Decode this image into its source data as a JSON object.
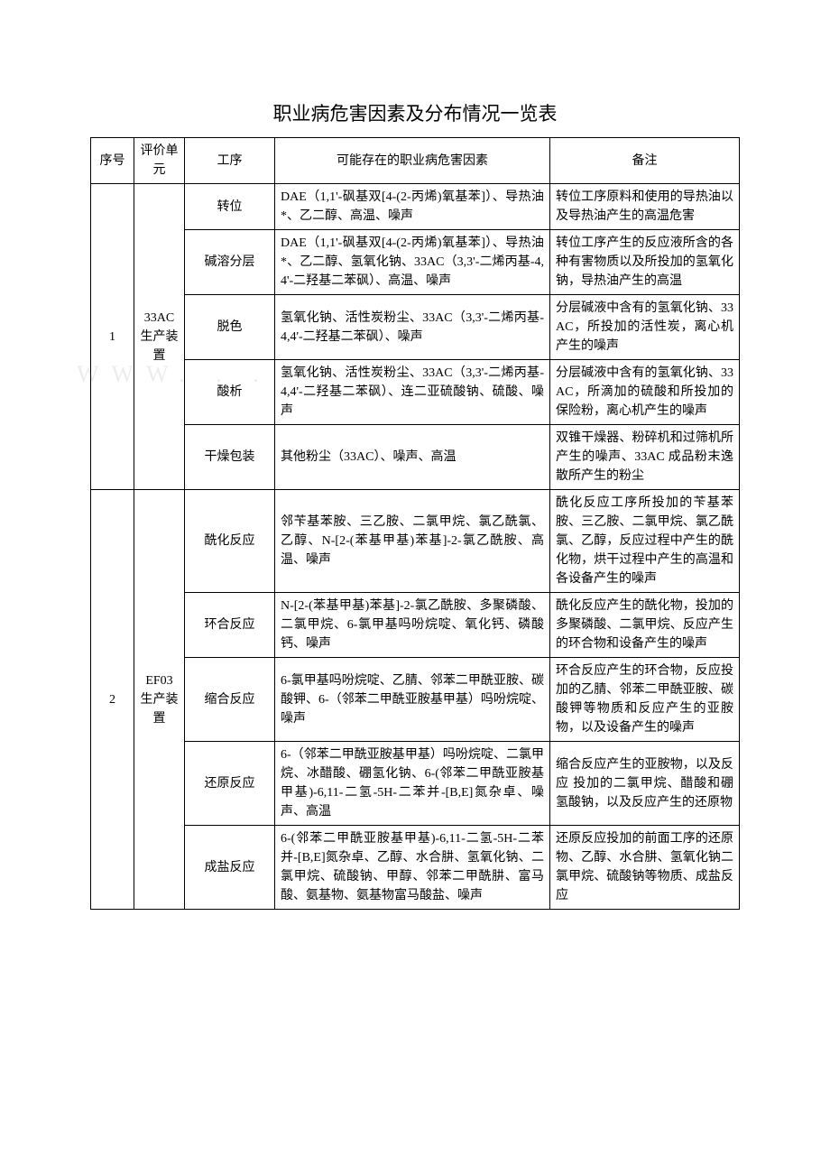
{
  "title": "职业病危害因素及分布情况一览表",
  "headers": {
    "seq": "序号",
    "unit": "评价单元",
    "proc": "工序",
    "hazard": "可能存在的职业病危害因素",
    "note": "备注"
  },
  "groups": [
    {
      "seq": "1",
      "unit": "33AC生产装置",
      "rows": [
        {
          "proc": "转位",
          "hazard": "DAE（1,1'-砜基双[4-(2-丙烯)氧基苯]）、导热油*、乙二醇、高温、噪声",
          "note": "转位工序原料和使用的导热油以及导热油产生的高温危害"
        },
        {
          "proc": "碱溶分层",
          "hazard": "DAE（1,1'-砜基双[4-(2-丙烯)氧基苯]）、导热油*、乙二醇、氢氧化钠、33AC（3,3'-二烯丙基-4,4'-二羟基二苯砜）、高温、噪声",
          "note": "转位工序产生的反应液所含的各种有害物质以及所投加的氢氧化钠，导热油产生的高温"
        },
        {
          "proc": "脱色",
          "hazard": "氢氧化钠、活性炭粉尘、33AC（3,3'-二烯丙基-4,4'-二羟基二苯砜）、噪声",
          "note": "分层碱液中含有的氢氧化钠、33AC，所投加的活性炭，离心机产生的噪声"
        },
        {
          "proc": "酸析",
          "hazard": "氢氧化钠、活性炭粉尘、33AC（3,3'-二烯丙基-4,4'-二羟基二苯砜）、连二亚硫酸钠、硫酸、噪声",
          "note": "分层碱液中含有的氢氧化钠、33AC，所滴加的硫酸和所投加的保险粉，离心机产生的噪声"
        },
        {
          "proc": "干燥包装",
          "hazard": "其他粉尘（33AC）、噪声、高温",
          "note": "双锥干燥器、粉碎机和过筛机所产生的噪声、33AC 成品粉末逸散所产生的粉尘"
        }
      ]
    },
    {
      "seq": "2",
      "unit": "EF03生产装置",
      "rows": [
        {
          "proc": "酰化反应",
          "hazard": "邻苄基苯胺、三乙胺、二氯甲烷、氯乙酰氯、乙醇、N-[2-(苯基甲基)苯基]-2-氯乙酰胺、高温、噪声",
          "note": "酰化反应工序所投加的苄基苯胺、三乙胺、二氯甲烷、氯乙酰氯、乙醇，反应过程中产生的酰化物，烘干过程中产生的高温和各设备产生的噪声"
        },
        {
          "proc": "环合反应",
          "hazard": "N-[2-(苯基甲基)苯基]-2-氯乙酰胺、多聚磷酸、二氯甲烷、6-氯甲基吗吩烷啶、氧化钙、磷酸钙、噪声",
          "note": "酰化反应产生的酰化物，投加的多聚磷酸、二氯甲烷、反应产生的环合物和设备产生的噪声"
        },
        {
          "proc": "缩合反应",
          "hazard": "6-氯甲基吗吩烷啶、乙腈、邻苯二甲酰亚胺、碳酸钾、6-（邻苯二甲酰亚胺基甲基）吗吩烷啶、噪声",
          "note": "环合反应产生的环合物，反应投加的乙腈、邻苯二甲酰亚胺、碳酸钾等物质和反应产生的亚胺物，以及设备产生的噪声"
        },
        {
          "proc": "还原反应",
          "hazard": "6-（邻苯二甲酰亚胺基甲基）吗吩烷啶、二氯甲烷、冰醋酸、硼氢化钠、6-(邻苯二甲酰亚胺基甲基)-6,11-二氢-5H-二苯并-[B,E]氮杂卓、噪声、高温",
          "note": "缩合反应产生的亚胺物，以及反 应 投加的二氯甲烷、醋酸和硼氢酸钠，以及反应产生的还原物"
        },
        {
          "proc": "成盐反应",
          "hazard": "6-(邻苯二甲酰亚胺基甲基)-6,11-二氢-5H-二苯并-[B,E]氮杂卓、乙醇、水合肼、氢氧化钠、二氯甲烷、硫酸钠、甲醇、邻苯二甲酰肼、富马酸、氨基物、氨基物富马酸盐、噪声",
          "note": "还原反应投加的前面工序的还原物、乙醇、水合肼、氢氧化钠二氯甲烷、硫酸钠等物质、成盐反应"
        }
      ]
    }
  ],
  "watermark": "WWW. . ."
}
